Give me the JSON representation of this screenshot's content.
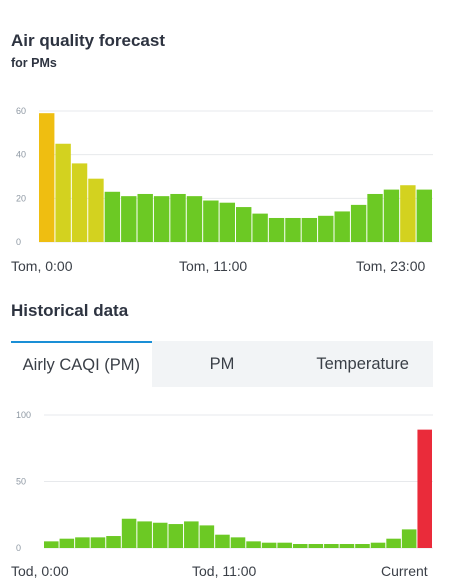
{
  "forecast": {
    "title": "Air quality forecast",
    "subtitle": "for PMs",
    "x_labels": [
      "Tom, 0:00",
      "Tom, 11:00",
      "Tom, 23:00"
    ]
  },
  "historical": {
    "title": "Historical data",
    "tabs": [
      "Airly CAQI (PM)",
      "PM",
      "Temperature"
    ],
    "active_tab": 0,
    "x_labels": [
      "Tod, 0:00",
      "Tod, 11:00",
      "Current"
    ]
  },
  "colors": {
    "green": "#6cc924",
    "yellowgreen": "#d3d21f",
    "yellow": "#efbe11",
    "red": "#ea2b3a",
    "grid": "#e7e9ec",
    "tick": "#8e98a3",
    "tab_accent": "#1a8fd6"
  },
  "chart_data": [
    {
      "type": "bar",
      "title": "Air quality forecast",
      "ylim": [
        0,
        60
      ],
      "yticks": [
        0,
        20,
        40,
        60
      ],
      "values": [
        59,
        45,
        36,
        29,
        23,
        21,
        22,
        21,
        22,
        21,
        19,
        18,
        16,
        13,
        11,
        11,
        11,
        12,
        14,
        17,
        22,
        24,
        26,
        24
      ],
      "bar_colors": [
        "yellow",
        "yellowgreen",
        "yellowgreen",
        "yellowgreen",
        "green",
        "green",
        "green",
        "green",
        "green",
        "green",
        "green",
        "green",
        "green",
        "green",
        "green",
        "green",
        "green",
        "green",
        "green",
        "green",
        "green",
        "green",
        "yellowgreen",
        "green"
      ],
      "grid": true
    },
    {
      "type": "bar",
      "title": "Historical data",
      "ylim": [
        0,
        100
      ],
      "yticks": [
        0,
        50,
        100
      ],
      "values": [
        5,
        7,
        8,
        8,
        9,
        22,
        20,
        19,
        18,
        20,
        17,
        10,
        8,
        5,
        4,
        4,
        3,
        3,
        3,
        3,
        3,
        4,
        7,
        14,
        89
      ],
      "bar_colors": [
        "green",
        "green",
        "green",
        "green",
        "green",
        "green",
        "green",
        "green",
        "green",
        "green",
        "green",
        "green",
        "green",
        "green",
        "green",
        "green",
        "green",
        "green",
        "green",
        "green",
        "green",
        "green",
        "green",
        "green",
        "red"
      ],
      "grid": true
    }
  ]
}
